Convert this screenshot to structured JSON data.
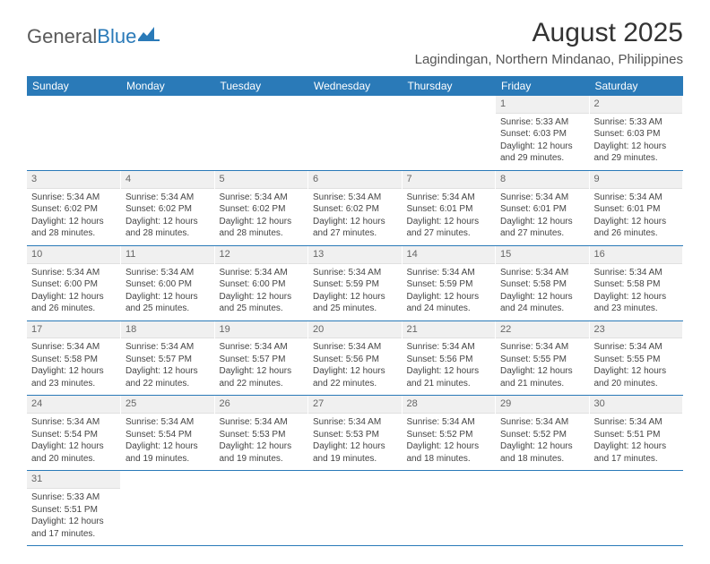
{
  "brand": {
    "part1": "General",
    "part2": "Blue"
  },
  "title": "August 2025",
  "location": "Lagindingan, Northern Mindanao, Philippines",
  "colors": {
    "header_bg": "#2a7ab8",
    "header_text": "#ffffff",
    "daynum_bg": "#f0f0f0",
    "row_sep": "#2a7ab8"
  },
  "day_headers": [
    "Sunday",
    "Monday",
    "Tuesday",
    "Wednesday",
    "Thursday",
    "Friday",
    "Saturday"
  ],
  "weeks": [
    [
      null,
      null,
      null,
      null,
      null,
      {
        "n": "1",
        "sunrise": "5:33 AM",
        "sunset": "6:03 PM",
        "day_h": "12",
        "day_m": "29"
      },
      {
        "n": "2",
        "sunrise": "5:33 AM",
        "sunset": "6:03 PM",
        "day_h": "12",
        "day_m": "29"
      }
    ],
    [
      {
        "n": "3",
        "sunrise": "5:34 AM",
        "sunset": "6:02 PM",
        "day_h": "12",
        "day_m": "28"
      },
      {
        "n": "4",
        "sunrise": "5:34 AM",
        "sunset": "6:02 PM",
        "day_h": "12",
        "day_m": "28"
      },
      {
        "n": "5",
        "sunrise": "5:34 AM",
        "sunset": "6:02 PM",
        "day_h": "12",
        "day_m": "28"
      },
      {
        "n": "6",
        "sunrise": "5:34 AM",
        "sunset": "6:02 PM",
        "day_h": "12",
        "day_m": "27"
      },
      {
        "n": "7",
        "sunrise": "5:34 AM",
        "sunset": "6:01 PM",
        "day_h": "12",
        "day_m": "27"
      },
      {
        "n": "8",
        "sunrise": "5:34 AM",
        "sunset": "6:01 PM",
        "day_h": "12",
        "day_m": "27"
      },
      {
        "n": "9",
        "sunrise": "5:34 AM",
        "sunset": "6:01 PM",
        "day_h": "12",
        "day_m": "26"
      }
    ],
    [
      {
        "n": "10",
        "sunrise": "5:34 AM",
        "sunset": "6:00 PM",
        "day_h": "12",
        "day_m": "26"
      },
      {
        "n": "11",
        "sunrise": "5:34 AM",
        "sunset": "6:00 PM",
        "day_h": "12",
        "day_m": "25"
      },
      {
        "n": "12",
        "sunrise": "5:34 AM",
        "sunset": "6:00 PM",
        "day_h": "12",
        "day_m": "25"
      },
      {
        "n": "13",
        "sunrise": "5:34 AM",
        "sunset": "5:59 PM",
        "day_h": "12",
        "day_m": "25"
      },
      {
        "n": "14",
        "sunrise": "5:34 AM",
        "sunset": "5:59 PM",
        "day_h": "12",
        "day_m": "24"
      },
      {
        "n": "15",
        "sunrise": "5:34 AM",
        "sunset": "5:58 PM",
        "day_h": "12",
        "day_m": "24"
      },
      {
        "n": "16",
        "sunrise": "5:34 AM",
        "sunset": "5:58 PM",
        "day_h": "12",
        "day_m": "23"
      }
    ],
    [
      {
        "n": "17",
        "sunrise": "5:34 AM",
        "sunset": "5:58 PM",
        "day_h": "12",
        "day_m": "23"
      },
      {
        "n": "18",
        "sunrise": "5:34 AM",
        "sunset": "5:57 PM",
        "day_h": "12",
        "day_m": "22"
      },
      {
        "n": "19",
        "sunrise": "5:34 AM",
        "sunset": "5:57 PM",
        "day_h": "12",
        "day_m": "22"
      },
      {
        "n": "20",
        "sunrise": "5:34 AM",
        "sunset": "5:56 PM",
        "day_h": "12",
        "day_m": "22"
      },
      {
        "n": "21",
        "sunrise": "5:34 AM",
        "sunset": "5:56 PM",
        "day_h": "12",
        "day_m": "21"
      },
      {
        "n": "22",
        "sunrise": "5:34 AM",
        "sunset": "5:55 PM",
        "day_h": "12",
        "day_m": "21"
      },
      {
        "n": "23",
        "sunrise": "5:34 AM",
        "sunset": "5:55 PM",
        "day_h": "12",
        "day_m": "20"
      }
    ],
    [
      {
        "n": "24",
        "sunrise": "5:34 AM",
        "sunset": "5:54 PM",
        "day_h": "12",
        "day_m": "20"
      },
      {
        "n": "25",
        "sunrise": "5:34 AM",
        "sunset": "5:54 PM",
        "day_h": "12",
        "day_m": "19"
      },
      {
        "n": "26",
        "sunrise": "5:34 AM",
        "sunset": "5:53 PM",
        "day_h": "12",
        "day_m": "19"
      },
      {
        "n": "27",
        "sunrise": "5:34 AM",
        "sunset": "5:53 PM",
        "day_h": "12",
        "day_m": "19"
      },
      {
        "n": "28",
        "sunrise": "5:34 AM",
        "sunset": "5:52 PM",
        "day_h": "12",
        "day_m": "18"
      },
      {
        "n": "29",
        "sunrise": "5:34 AM",
        "sunset": "5:52 PM",
        "day_h": "12",
        "day_m": "18"
      },
      {
        "n": "30",
        "sunrise": "5:34 AM",
        "sunset": "5:51 PM",
        "day_h": "12",
        "day_m": "17"
      }
    ],
    [
      {
        "n": "31",
        "sunrise": "5:33 AM",
        "sunset": "5:51 PM",
        "day_h": "12",
        "day_m": "17"
      },
      null,
      null,
      null,
      null,
      null,
      null
    ]
  ],
  "labels": {
    "sunrise": "Sunrise:",
    "sunset": "Sunset:",
    "daylight": "Daylight:",
    "hours": "hours",
    "and": "and",
    "minutes": "minutes."
  }
}
